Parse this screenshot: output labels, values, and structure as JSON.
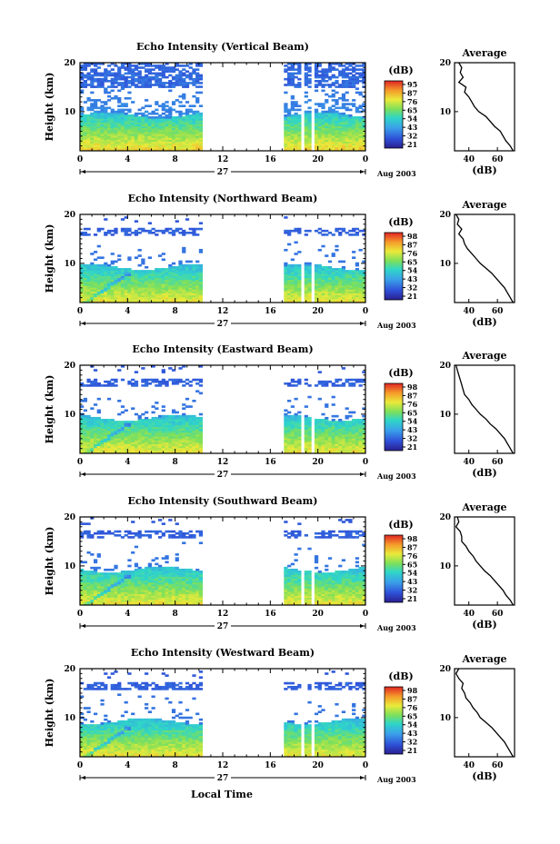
{
  "figure": {
    "xlabel_bottom": "Local Time"
  },
  "chart_data": [
    {
      "type": "heatmap",
      "title": "Echo Intensity (Vertical Beam)",
      "ylabel": "Height (km)",
      "x_ticks": [
        "0",
        "4",
        "8",
        "12",
        "16",
        "20",
        "0"
      ],
      "xlim": [
        0,
        24
      ],
      "ylim": [
        2,
        20
      ],
      "y_ticks": [
        "20",
        "10"
      ],
      "date_label": "27",
      "month_label": "Aug 2003",
      "colorbar": {
        "unit": "(dB)",
        "ticks": [
          "95",
          "87",
          "76",
          "65",
          "54",
          "43",
          "32",
          "21"
        ],
        "range": [
          21,
          95
        ]
      },
      "data_gaps": [
        [
          10.2,
          17.2
        ],
        [
          18.6,
          18.9
        ],
        [
          19.3,
          19.6
        ]
      ],
      "average_profile": {
        "title": "Average",
        "xlabel": "(dB)",
        "x_ticks": [
          "40",
          "60"
        ],
        "xlim": [
          30,
          72
        ],
        "y_ticks": [
          "20",
          "10"
        ],
        "height": [
          20,
          19,
          18,
          17,
          16,
          15,
          14,
          13,
          12,
          11,
          10,
          9,
          8,
          7,
          6,
          5,
          4,
          3,
          2
        ],
        "db": [
          33,
          35,
          34,
          36,
          33,
          38,
          37,
          40,
          42,
          44,
          47,
          52,
          55,
          58,
          62,
          64,
          66,
          69,
          71
        ]
      }
    },
    {
      "type": "heatmap",
      "title": "Echo Intensity (Northward Beam)",
      "ylabel": "Height (km)",
      "x_ticks": [
        "0",
        "4",
        "8",
        "12",
        "16",
        "20",
        "0"
      ],
      "xlim": [
        0,
        24
      ],
      "ylim": [
        2,
        20
      ],
      "y_ticks": [
        "20",
        "10"
      ],
      "date_label": "27",
      "month_label": "Aug 2003",
      "colorbar": {
        "unit": "(dB)",
        "ticks": [
          "98",
          "87",
          "76",
          "65",
          "54",
          "43",
          "32",
          "21"
        ],
        "range": [
          21,
          98
        ]
      },
      "data_gaps": [
        [
          10.2,
          17.2
        ],
        [
          18.6,
          18.9
        ],
        [
          19.3,
          19.6
        ]
      ],
      "average_profile": {
        "title": "Average",
        "xlabel": "(dB)",
        "x_ticks": [
          "40",
          "60"
        ],
        "xlim": [
          30,
          72
        ],
        "y_ticks": [
          "20",
          "10"
        ],
        "height": [
          20,
          19,
          18,
          17,
          16,
          15,
          14,
          13,
          12,
          11,
          10,
          9,
          8,
          7,
          6,
          5,
          4,
          3,
          2
        ],
        "db": [
          31,
          33,
          32,
          35,
          33,
          36,
          37,
          39,
          42,
          45,
          48,
          52,
          56,
          59,
          62,
          65,
          67,
          69,
          71
        ]
      }
    },
    {
      "type": "heatmap",
      "title": "Echo Intensity (Eastward Beam)",
      "ylabel": "Height (km)",
      "x_ticks": [
        "0",
        "4",
        "8",
        "12",
        "16",
        "20",
        "0"
      ],
      "xlim": [
        0,
        24
      ],
      "ylim": [
        2,
        20
      ],
      "y_ticks": [
        "20",
        "10"
      ],
      "date_label": "27",
      "month_label": "Aug 2003",
      "colorbar": {
        "unit": "(dB)",
        "ticks": [
          "98",
          "87",
          "76",
          "65",
          "54",
          "43",
          "32",
          "21"
        ],
        "range": [
          21,
          98
        ]
      },
      "data_gaps": [
        [
          10.2,
          17.2
        ],
        [
          18.6,
          18.9
        ],
        [
          19.3,
          19.6
        ]
      ],
      "average_profile": {
        "title": "Average",
        "xlabel": "(dB)",
        "x_ticks": [
          "40",
          "60"
        ],
        "xlim": [
          30,
          72
        ],
        "y_ticks": [
          "20",
          "10"
        ],
        "height": [
          20,
          19,
          18,
          17,
          16,
          15,
          14,
          13,
          12,
          11,
          10,
          9,
          8,
          7,
          6,
          5,
          4,
          3,
          2
        ],
        "db": [
          31,
          32,
          33,
          34,
          35,
          36,
          37,
          40,
          42,
          45,
          48,
          52,
          55,
          59,
          62,
          65,
          67,
          69,
          71
        ]
      }
    },
    {
      "type": "heatmap",
      "title": "Echo Intensity (Southward Beam)",
      "ylabel": "Height (km)",
      "x_ticks": [
        "0",
        "4",
        "8",
        "12",
        "16",
        "20",
        "0"
      ],
      "xlim": [
        0,
        24
      ],
      "ylim": [
        2,
        20
      ],
      "y_ticks": [
        "20",
        "10"
      ],
      "date_label": "27",
      "month_label": "Aug 2003",
      "colorbar": {
        "unit": "(dB)",
        "ticks": [
          "98",
          "87",
          "76",
          "65",
          "54",
          "43",
          "32",
          "21"
        ],
        "range": [
          21,
          98
        ]
      },
      "data_gaps": [
        [
          10.2,
          17.2
        ],
        [
          18.6,
          18.9
        ],
        [
          19.3,
          19.6
        ]
      ],
      "average_profile": {
        "title": "Average",
        "xlabel": "(dB)",
        "x_ticks": [
          "40",
          "60"
        ],
        "xlim": [
          30,
          72
        ],
        "y_ticks": [
          "20",
          "10"
        ],
        "height": [
          20,
          19,
          18,
          17,
          16,
          15,
          14,
          13,
          12,
          11,
          10,
          9,
          8,
          7,
          6,
          5,
          4,
          3,
          2
        ],
        "db": [
          32,
          33,
          31,
          34,
          35,
          35,
          38,
          40,
          43,
          45,
          48,
          51,
          55,
          58,
          61,
          64,
          66,
          69,
          71
        ]
      }
    },
    {
      "type": "heatmap",
      "title": "Echo Intensity (Westward Beam)",
      "ylabel": "Height (km)",
      "x_ticks": [
        "0",
        "4",
        "8",
        "12",
        "16",
        "20",
        "0"
      ],
      "xlim": [
        0,
        24
      ],
      "ylim": [
        2,
        20
      ],
      "y_ticks": [
        "20",
        "10"
      ],
      "date_label": "27",
      "month_label": "Aug 2003",
      "colorbar": {
        "unit": "(dB)",
        "ticks": [
          "98",
          "87",
          "76",
          "65",
          "54",
          "43",
          "32",
          "21"
        ],
        "range": [
          21,
          98
        ]
      },
      "data_gaps": [
        [
          10.2,
          17.2
        ],
        [
          18.6,
          18.9
        ],
        [
          19.3,
          19.6
        ]
      ],
      "average_profile": {
        "title": "Average",
        "xlabel": "(dB)",
        "x_ticks": [
          "40",
          "60"
        ],
        "xlim": [
          30,
          72
        ],
        "y_ticks": [
          "20",
          "10"
        ],
        "height": [
          20,
          19,
          18,
          17,
          16,
          15,
          14,
          13,
          12,
          11,
          10,
          9,
          8,
          7,
          6,
          5,
          4,
          3,
          2
        ],
        "db": [
          33,
          31,
          33,
          36,
          35,
          37,
          38,
          41,
          43,
          46,
          48,
          52,
          56,
          59,
          62,
          65,
          67,
          69,
          71
        ]
      }
    }
  ]
}
